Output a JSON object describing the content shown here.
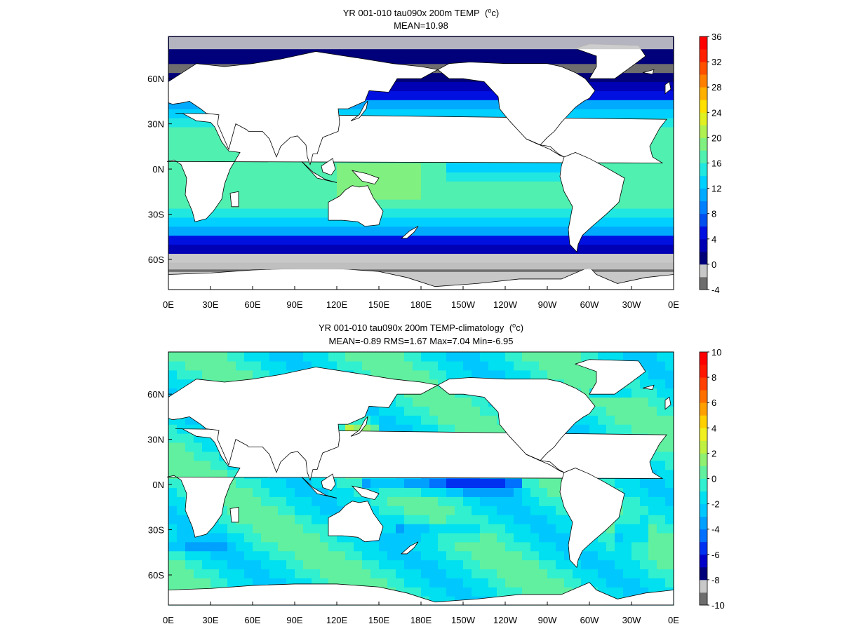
{
  "chart_data": [
    {
      "type": "heatmap",
      "title": "YR 001-010 tau090x 200m TEMP",
      "units": "(°c)",
      "units_parts": [
        "(",
        "o",
        "c)"
      ],
      "subtitle": "MEAN=10.98",
      "x_ticks": [
        "0E",
        "30E",
        "60E",
        "90E",
        "120E",
        "150E",
        "180E",
        "150W",
        "120W",
        "90W",
        "60W",
        "30W",
        "0E"
      ],
      "y_ticks": [
        "60N",
        "30N",
        "0N",
        "30S",
        "60S"
      ],
      "y_tick_lats": [
        60,
        30,
        0,
        -30,
        -60
      ],
      "lon_range": [
        0,
        360
      ],
      "lat_range": [
        -80,
        88
      ],
      "colorbar": {
        "labels": [
          "36",
          "32",
          "28",
          "24",
          "20",
          "16",
          "12",
          "8",
          "4",
          "0",
          "-4"
        ],
        "range": [
          -4,
          36
        ],
        "step": 2,
        "colors": [
          "#6e6e6e",
          "#c8c8c8",
          "#00007a",
          "#0000b4",
          "#0010e0",
          "#0050f0",
          "#0080ff",
          "#00aaff",
          "#00d0ff",
          "#20e8e0",
          "#50f0b0",
          "#80f080",
          "#b0f050",
          "#e0f020",
          "#ffe000",
          "#ffb000",
          "#ff8000",
          "#ff5000",
          "#ff2000",
          "#ff0000"
        ]
      },
      "summary": {
        "mean": 10.98
      }
    },
    {
      "type": "heatmap",
      "title": "YR 001-010 tau090x 200m TEMP-climatology",
      "units": "(°c)",
      "units_parts": [
        "(",
        "o",
        "c)"
      ],
      "subtitle": "MEAN=-0.89   RMS=1.67   Max=7.04   Min=-6.95",
      "x_ticks": [
        "0E",
        "30E",
        "60E",
        "90E",
        "120E",
        "150E",
        "180E",
        "150W",
        "120W",
        "90W",
        "60W",
        "30W",
        "0E"
      ],
      "y_ticks": [
        "60N",
        "30N",
        "0N",
        "30S",
        "60S"
      ],
      "y_tick_lats": [
        60,
        30,
        0,
        -30,
        -60
      ],
      "lon_range": [
        0,
        360
      ],
      "lat_range": [
        -80,
        88
      ],
      "colorbar": {
        "labels": [
          "10",
          "8",
          "6",
          "4",
          "2",
          "0",
          "-2",
          "-4",
          "-6",
          "-8",
          "-10"
        ],
        "range": [
          -10,
          10
        ],
        "step": 1,
        "colors": [
          "#6e6e6e",
          "#c8c8c8",
          "#00007a",
          "#0000c8",
          "#0030f0",
          "#0070ff",
          "#00a0ff",
          "#00c8ff",
          "#00e0f0",
          "#30f0d0",
          "#60f0a0",
          "#90f070",
          "#c0f040",
          "#f0f020",
          "#ffd000",
          "#ffa000",
          "#ff7000",
          "#ff4000",
          "#ff1800",
          "#ff0000"
        ]
      },
      "summary": {
        "mean": -0.89,
        "rms": 1.67,
        "max": 7.04,
        "min": -6.95
      }
    }
  ]
}
